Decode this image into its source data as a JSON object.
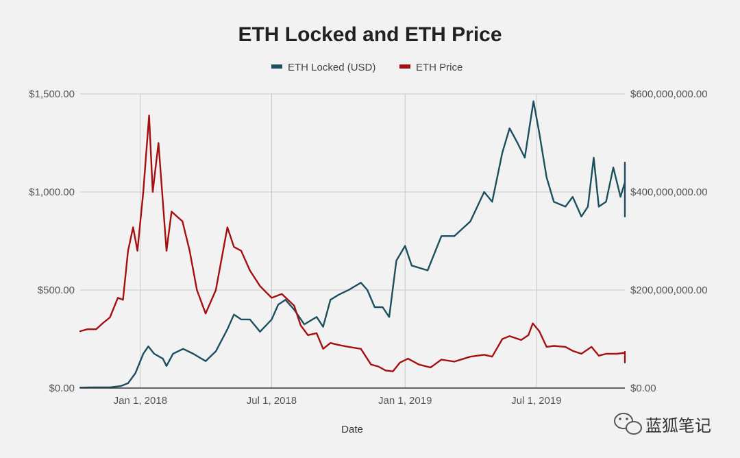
{
  "chart_data": {
    "type": "line",
    "title": "ETH Locked and ETH Price",
    "xlabel": "Date",
    "ylabel_left": "",
    "ylabel_right": "",
    "x_range": [
      "2017-10-10",
      "2019-10-31"
    ],
    "x_ticks": [
      {
        "date": "2018-01-01",
        "label": "Jan 1, 2018"
      },
      {
        "date": "2018-07-01",
        "label": "Jul 1, 2018"
      },
      {
        "date": "2019-01-01",
        "label": "Jan 1, 2019"
      },
      {
        "date": "2019-07-01",
        "label": "Jul 1, 2019"
      }
    ],
    "y_left": {
      "min": 0,
      "max": 1500,
      "ticks": [
        0,
        500,
        1000,
        1500
      ],
      "tick_labels": [
        "$0.00",
        "$500.00",
        "$1,000.00",
        "$1,500.00"
      ]
    },
    "y_right": {
      "min": 0,
      "max": 600000000,
      "ticks": [
        0,
        200000000,
        400000000,
        600000000
      ],
      "tick_labels": [
        "$0.00",
        "$200,000,000.00",
        "$400,000,000.00",
        "$600,000,000.00"
      ]
    },
    "grid": true,
    "legend_position": "top-center",
    "series": [
      {
        "name": "ETH Locked (USD)",
        "axis": "right",
        "color": "#1b4f5e",
        "points": [
          [
            "2017-10-10",
            1000000
          ],
          [
            "2017-11-01",
            1500000
          ],
          [
            "2017-11-20",
            1500000
          ],
          [
            "2017-12-05",
            4000000
          ],
          [
            "2017-12-15",
            10000000
          ],
          [
            "2017-12-25",
            30000000
          ],
          [
            "2018-01-05",
            70000000
          ],
          [
            "2018-01-12",
            85000000
          ],
          [
            "2018-01-20",
            70000000
          ],
          [
            "2018-02-01",
            60000000
          ],
          [
            "2018-02-06",
            45000000
          ],
          [
            "2018-02-15",
            70000000
          ],
          [
            "2018-03-01",
            80000000
          ],
          [
            "2018-03-15",
            70000000
          ],
          [
            "2018-04-01",
            55000000
          ],
          [
            "2018-04-15",
            75000000
          ],
          [
            "2018-05-01",
            120000000
          ],
          [
            "2018-05-10",
            150000000
          ],
          [
            "2018-05-20",
            140000000
          ],
          [
            "2018-06-01",
            140000000
          ],
          [
            "2018-06-15",
            115000000
          ],
          [
            "2018-07-01",
            140000000
          ],
          [
            "2018-07-10",
            170000000
          ],
          [
            "2018-07-20",
            180000000
          ],
          [
            "2018-08-01",
            160000000
          ],
          [
            "2018-08-15",
            130000000
          ],
          [
            "2018-09-01",
            145000000
          ],
          [
            "2018-09-10",
            125000000
          ],
          [
            "2018-09-20",
            180000000
          ],
          [
            "2018-10-01",
            190000000
          ],
          [
            "2018-10-15",
            200000000
          ],
          [
            "2018-11-01",
            215000000
          ],
          [
            "2018-11-10",
            200000000
          ],
          [
            "2018-11-20",
            165000000
          ],
          [
            "2018-12-01",
            165000000
          ],
          [
            "2018-12-10",
            145000000
          ],
          [
            "2018-12-20",
            260000000
          ],
          [
            "2019-01-01",
            290000000
          ],
          [
            "2019-01-10",
            250000000
          ],
          [
            "2019-02-01",
            240000000
          ],
          [
            "2019-02-20",
            310000000
          ],
          [
            "2019-03-10",
            310000000
          ],
          [
            "2019-04-01",
            340000000
          ],
          [
            "2019-04-20",
            400000000
          ],
          [
            "2019-05-01",
            380000000
          ],
          [
            "2019-05-15",
            480000000
          ],
          [
            "2019-05-25",
            530000000
          ],
          [
            "2019-06-05",
            500000000
          ],
          [
            "2019-06-15",
            470000000
          ],
          [
            "2019-06-27",
            585000000
          ],
          [
            "2019-07-05",
            520000000
          ],
          [
            "2019-07-15",
            430000000
          ],
          [
            "2019-07-25",
            380000000
          ],
          [
            "2019-08-10",
            370000000
          ],
          [
            "2019-08-20",
            390000000
          ],
          [
            "2019-09-01",
            350000000
          ],
          [
            "2019-09-10",
            370000000
          ],
          [
            "2019-09-18",
            470000000
          ],
          [
            "2019-09-25",
            370000000
          ],
          [
            "2019-10-05",
            380000000
          ],
          [
            "2019-10-15",
            450000000
          ],
          [
            "2019-10-25",
            390000000
          ],
          [
            "2019-11-01",
            420000000
          ],
          [
            "2019-11-10",
            460000000
          ],
          [
            "2019-11-20",
            380000000
          ],
          [
            "2019-12-01",
            400000000
          ],
          [
            "2019-12-05",
            350000000
          ],
          [
            "2019-12-08",
            380000000
          ]
        ]
      },
      {
        "name": "ETH Price",
        "axis": "left",
        "color": "#a50f0f",
        "points": [
          [
            "2017-10-10",
            290
          ],
          [
            "2017-10-20",
            300
          ],
          [
            "2017-11-01",
            300
          ],
          [
            "2017-11-10",
            330
          ],
          [
            "2017-11-20",
            360
          ],
          [
            "2017-12-01",
            460
          ],
          [
            "2017-12-08",
            450
          ],
          [
            "2017-12-15",
            700
          ],
          [
            "2017-12-22",
            820
          ],
          [
            "2017-12-28",
            700
          ],
          [
            "2018-01-05",
            1000
          ],
          [
            "2018-01-13",
            1390
          ],
          [
            "2018-01-18",
            1000
          ],
          [
            "2018-01-26",
            1250
          ],
          [
            "2018-02-06",
            700
          ],
          [
            "2018-02-13",
            900
          ],
          [
            "2018-02-28",
            850
          ],
          [
            "2018-03-10",
            700
          ],
          [
            "2018-03-20",
            500
          ],
          [
            "2018-04-01",
            380
          ],
          [
            "2018-04-15",
            500
          ],
          [
            "2018-05-01",
            820
          ],
          [
            "2018-05-10",
            720
          ],
          [
            "2018-05-20",
            700
          ],
          [
            "2018-06-01",
            600
          ],
          [
            "2018-06-15",
            520
          ],
          [
            "2018-07-01",
            460
          ],
          [
            "2018-07-15",
            480
          ],
          [
            "2018-08-01",
            420
          ],
          [
            "2018-08-10",
            320
          ],
          [
            "2018-08-20",
            270
          ],
          [
            "2018-09-01",
            280
          ],
          [
            "2018-09-10",
            200
          ],
          [
            "2018-09-20",
            230
          ],
          [
            "2018-10-01",
            220
          ],
          [
            "2018-10-15",
            210
          ],
          [
            "2018-11-01",
            200
          ],
          [
            "2018-11-15",
            120
          ],
          [
            "2018-11-25",
            110
          ],
          [
            "2018-12-05",
            90
          ],
          [
            "2018-12-15",
            85
          ],
          [
            "2018-12-25",
            130
          ],
          [
            "2019-01-05",
            150
          ],
          [
            "2019-01-20",
            120
          ],
          [
            "2019-02-05",
            105
          ],
          [
            "2019-02-20",
            145
          ],
          [
            "2019-03-10",
            135
          ],
          [
            "2019-04-01",
            160
          ],
          [
            "2019-04-20",
            170
          ],
          [
            "2019-05-01",
            160
          ],
          [
            "2019-05-15",
            250
          ],
          [
            "2019-05-25",
            265
          ],
          [
            "2019-06-10",
            245
          ],
          [
            "2019-06-20",
            270
          ],
          [
            "2019-06-26",
            330
          ],
          [
            "2019-07-05",
            290
          ],
          [
            "2019-07-15",
            210
          ],
          [
            "2019-07-25",
            215
          ],
          [
            "2019-08-10",
            210
          ],
          [
            "2019-08-20",
            190
          ],
          [
            "2019-09-01",
            175
          ],
          [
            "2019-09-15",
            210
          ],
          [
            "2019-09-25",
            165
          ],
          [
            "2019-10-05",
            175
          ],
          [
            "2019-10-20",
            175
          ],
          [
            "2019-11-01",
            180
          ],
          [
            "2019-11-10",
            185
          ],
          [
            "2019-11-20",
            150
          ],
          [
            "2019-12-01",
            150
          ],
          [
            "2019-12-08",
            130
          ]
        ]
      }
    ]
  },
  "watermark": {
    "text": "蓝狐笔记",
    "icon": "wechat-icon"
  }
}
